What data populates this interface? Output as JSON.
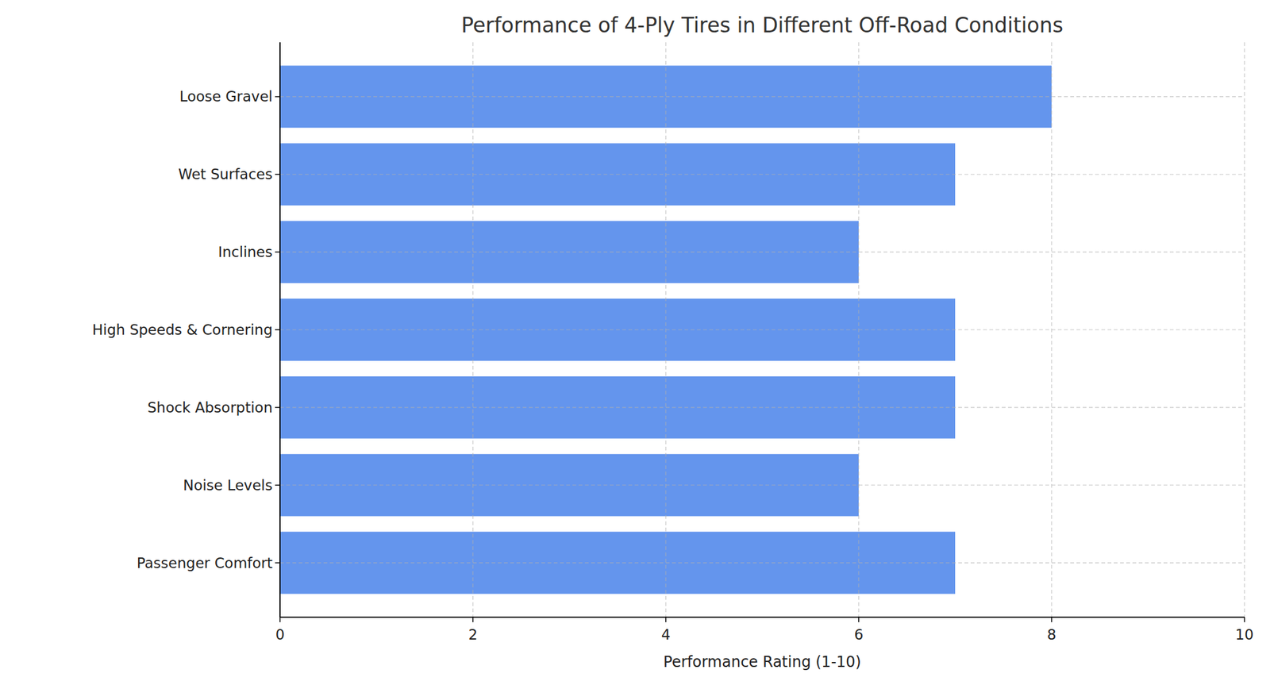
{
  "chart_data": {
    "type": "bar",
    "orientation": "horizontal",
    "title": "Performance of 4-Ply Tires in Different Off-Road Conditions",
    "x_label": "Performance Rating (1-10)",
    "categories": [
      "Loose Gravel",
      "Wet Surfaces",
      "Inclines",
      "High Speeds & Cornering",
      "Shock Absorption",
      "Noise Levels",
      "Passenger Comfort"
    ],
    "values": [
      8,
      7,
      6,
      7,
      7,
      6,
      7
    ],
    "color": "#6495ed",
    "xlim": [
      0,
      10
    ],
    "xticks": [
      0,
      2,
      4,
      6,
      8,
      10
    ],
    "grid": true
  }
}
